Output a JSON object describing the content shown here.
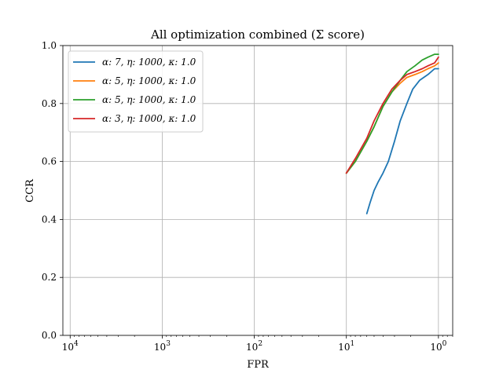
{
  "chart_data": {
    "type": "line",
    "title": "All optimization combined (Σ score)",
    "xlabel": "FPR",
    "ylabel": "CCR",
    "xscale": "log",
    "x_axis_inverted": true,
    "xlim": [
      12000,
      0.7
    ],
    "ylim": [
      0.0,
      1.0
    ],
    "grid": true,
    "legend_position": "upper-left",
    "x_ticks": [
      {
        "value": 10000,
        "base": "10",
        "exp": "4"
      },
      {
        "value": 1000,
        "base": "10",
        "exp": "3"
      },
      {
        "value": 100,
        "base": "10",
        "exp": "2"
      },
      {
        "value": 10,
        "base": "10",
        "exp": "1"
      },
      {
        "value": 1,
        "base": "10",
        "exp": "0"
      }
    ],
    "y_ticks": [
      {
        "value": 0.0,
        "label": "0.0"
      },
      {
        "value": 0.2,
        "label": "0.2"
      },
      {
        "value": 0.4,
        "label": "0.4"
      },
      {
        "value": 0.6,
        "label": "0.6"
      },
      {
        "value": 0.8,
        "label": "0.8"
      },
      {
        "value": 1.0,
        "label": "1.0"
      }
    ],
    "series": [
      {
        "name": "α: 7, η: 1000, κ: 1.0",
        "color": "#1f77b4",
        "x": [
          6.0,
          5.5,
          5.0,
          4.5,
          4.0,
          3.5,
          3.0,
          2.6,
          2.2,
          1.9,
          1.6,
          1.3,
          1.1,
          1.0
        ],
        "y": [
          0.42,
          0.46,
          0.5,
          0.53,
          0.56,
          0.6,
          0.67,
          0.74,
          0.8,
          0.85,
          0.88,
          0.9,
          0.92,
          0.92
        ]
      },
      {
        "name": "α: 5, η: 1000, κ: 1.0",
        "color": "#ff7f0e",
        "x": [
          10.0,
          8.0,
          6.0,
          5.0,
          4.0,
          3.2,
          2.6,
          2.2,
          1.8,
          1.5,
          1.3,
          1.1,
          1.0
        ],
        "y": [
          0.56,
          0.6,
          0.67,
          0.72,
          0.79,
          0.84,
          0.87,
          0.89,
          0.9,
          0.91,
          0.92,
          0.93,
          0.94
        ]
      },
      {
        "name": "α: 5, η: 1000, κ: 1.0",
        "color": "#2ca02c",
        "x": [
          10.0,
          8.0,
          6.0,
          5.0,
          4.0,
          3.2,
          2.6,
          2.2,
          1.8,
          1.5,
          1.3,
          1.1,
          1.0
        ],
        "y": [
          0.56,
          0.6,
          0.67,
          0.72,
          0.79,
          0.84,
          0.88,
          0.91,
          0.93,
          0.95,
          0.96,
          0.97,
          0.97
        ]
      },
      {
        "name": "α: 3, η: 1000, κ: 1.0",
        "color": "#d62728",
        "x": [
          10.0,
          8.0,
          6.0,
          5.0,
          4.0,
          3.2,
          2.6,
          2.2,
          1.8,
          1.5,
          1.3,
          1.1,
          1.0
        ],
        "y": [
          0.56,
          0.61,
          0.68,
          0.74,
          0.8,
          0.85,
          0.88,
          0.9,
          0.91,
          0.92,
          0.93,
          0.94,
          0.96
        ]
      }
    ]
  }
}
